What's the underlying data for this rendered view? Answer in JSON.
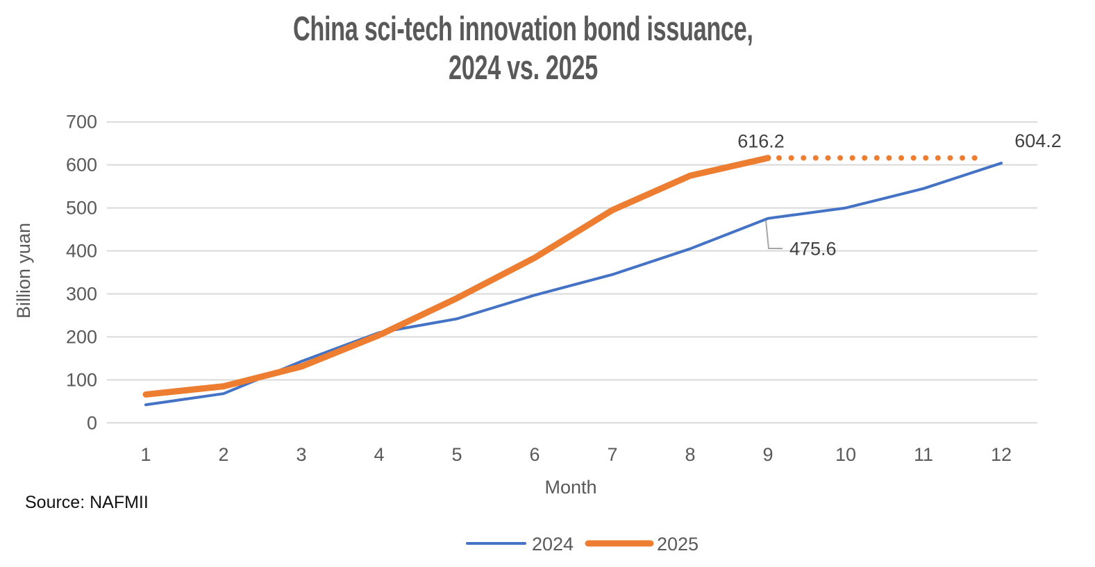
{
  "title": {
    "line1": "China sci-tech innovation bond issuance,",
    "line2": "2024 vs. 2025"
  },
  "source": "Source: NAFMII",
  "colors": {
    "series_2024": "#4472C4",
    "series_2025": "#ED7D31",
    "gridline": "#D9D9D9",
    "axis_text": "#595959",
    "data_label": "#404040",
    "title_text": "#595959",
    "leader_line": "#A6A6A6",
    "background": "#FFFFFF"
  },
  "chart_data": {
    "type": "line",
    "title": "China sci-tech innovation bond issuance, 2024 vs. 2025",
    "xlabel": "Month",
    "ylabel": "Billion yuan",
    "x": [
      1,
      2,
      3,
      4,
      5,
      6,
      7,
      8,
      9,
      10,
      11,
      12
    ],
    "xticks": [
      "1",
      "2",
      "3",
      "4",
      "5",
      "6",
      "7",
      "8",
      "9",
      "10",
      "11",
      "12"
    ],
    "ylim": [
      0,
      700
    ],
    "yticks": [
      0,
      100,
      200,
      300,
      400,
      500,
      600,
      700
    ],
    "grid": true,
    "legend_position": "bottom",
    "series": [
      {
        "name": "2024",
        "color": "#4472C4",
        "stroke_width": 4,
        "months": [
          1,
          2,
          3,
          4,
          5,
          6,
          7,
          8,
          9,
          10,
          11,
          12
        ],
        "values": [
          42,
          68,
          143,
          210,
          242,
          297,
          345,
          405,
          475.6,
          500,
          545,
          604.2
        ]
      },
      {
        "name": "2025",
        "color": "#ED7D31",
        "stroke_width": 9,
        "months": [
          1,
          2,
          3,
          4,
          5,
          6,
          7,
          8,
          9
        ],
        "values": [
          66,
          85,
          131,
          204,
          290,
          384,
          495,
          575,
          616.2
        ]
      }
    ],
    "projection": {
      "series": "2025",
      "style": "dotted",
      "color": "#ED7D31",
      "value": 616.2,
      "from_month": 9,
      "to_month": 12
    },
    "annotations": [
      {
        "text": "616.2",
        "series": "2025",
        "month": 9,
        "value": 616.2
      },
      {
        "text": "604.2",
        "series": "2024",
        "month": 12,
        "value": 604.2
      },
      {
        "text": "475.6",
        "series": "2024",
        "month": 9,
        "value": 475.6,
        "leader": true
      }
    ]
  }
}
